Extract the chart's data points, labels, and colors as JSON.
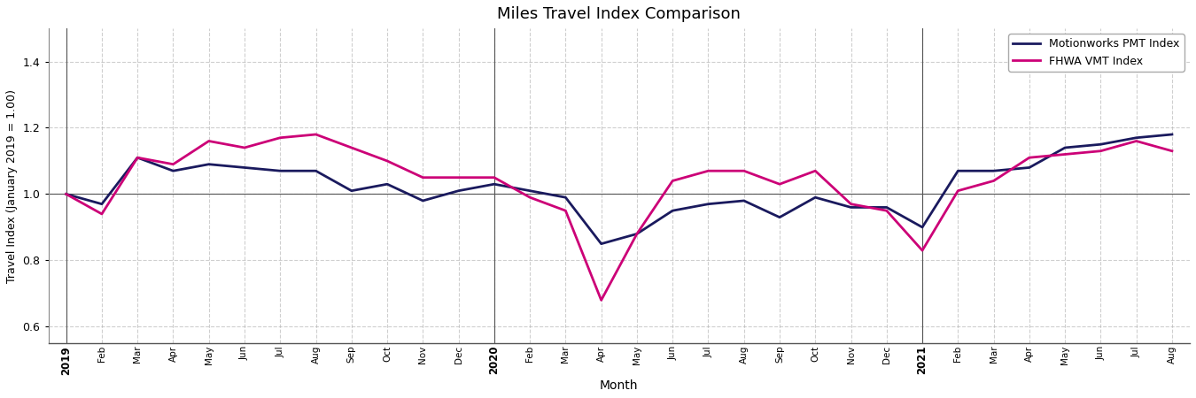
{
  "title": "Miles Travel Index Comparison",
  "xlabel": "Month",
  "ylabel": "Travel Index (January 2019 = 1.00)",
  "pmt_label": "Motionworks PMT Index",
  "vmt_label": "FHWA VMT Index",
  "pmt_color": "#1a1a5e",
  "vmt_color": "#cc0077",
  "ylim": [
    0.55,
    1.5
  ],
  "yticks": [
    0.6,
    0.8,
    1.0,
    1.2,
    1.4
  ],
  "hline_y": 1.0,
  "months": [
    "2019",
    "Feb",
    "Mar",
    "Apr",
    "May",
    "Jun",
    "Jul",
    "Aug",
    "Sep",
    "Oct",
    "Nov",
    "Dec",
    "2020",
    "Feb",
    "Mar",
    "Apr",
    "May",
    "Jun",
    "Jul",
    "Aug",
    "Sep",
    "Oct",
    "Nov",
    "Dec",
    "2021",
    "Feb",
    "Mar",
    "Apr",
    "May",
    "Jun",
    "Jul",
    "Aug"
  ],
  "year_indices": [
    0,
    12,
    24
  ],
  "pmt_values": [
    1.0,
    0.97,
    1.11,
    1.07,
    1.09,
    1.08,
    1.07,
    1.07,
    1.01,
    1.03,
    0.98,
    1.01,
    1.03,
    1.01,
    0.99,
    0.85,
    0.88,
    0.95,
    0.97,
    0.98,
    0.93,
    0.99,
    0.96,
    0.96,
    0.9,
    1.07,
    1.07,
    1.08,
    1.14,
    1.15,
    1.17,
    1.18
  ],
  "vmt_values": [
    1.0,
    0.94,
    1.11,
    1.09,
    1.16,
    1.14,
    1.17,
    1.18,
    1.14,
    1.1,
    1.05,
    1.05,
    1.05,
    0.99,
    0.95,
    0.68,
    0.88,
    1.04,
    1.07,
    1.07,
    1.03,
    1.07,
    0.97,
    0.95,
    0.83,
    1.01,
    1.04,
    1.11,
    1.12,
    1.13,
    1.16,
    1.13
  ],
  "linewidth": 2.0,
  "bg_color": "#ffffff",
  "grid_color": "#b0b0b0",
  "grid_style": "--",
  "grid_alpha": 0.6
}
